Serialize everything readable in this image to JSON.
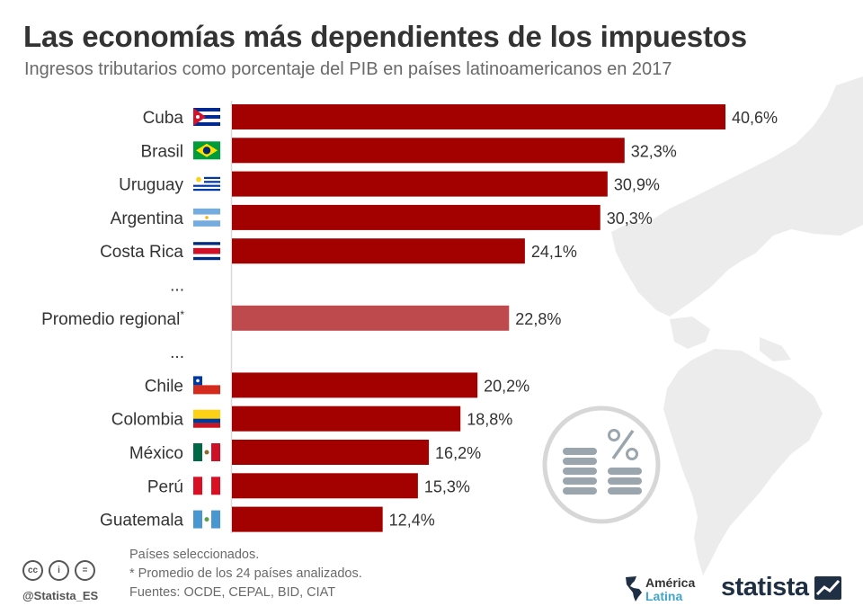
{
  "header": {
    "title": "Las economías más dependientes de los impuestos",
    "subtitle": "Ingresos tributarios como porcentaje del PIB en países latinoamericanos en 2017"
  },
  "chart_data": {
    "type": "bar",
    "orientation": "horizontal",
    "xlim": [
      0,
      40.6
    ],
    "rows": [
      {
        "label": "Cuba",
        "value": 40.6,
        "value_label": "40,6%",
        "flag": "cuba-flag",
        "highlight": false
      },
      {
        "label": "Brasil",
        "value": 32.3,
        "value_label": "32,3%",
        "flag": "brazil-flag",
        "highlight": false
      },
      {
        "label": "Uruguay",
        "value": 30.9,
        "value_label": "30,9%",
        "flag": "uruguay-flag",
        "highlight": false
      },
      {
        "label": "Argentina",
        "value": 30.3,
        "value_label": "30,3%",
        "flag": "argentina-flag",
        "highlight": false
      },
      {
        "label": "Costa Rica",
        "value": 24.1,
        "value_label": "24,1%",
        "flag": "costa-rica-flag",
        "highlight": false
      },
      {
        "label": "...",
        "gap": true
      },
      {
        "label": "Promedio regional",
        "label_mark": "*",
        "value": 22.8,
        "value_label": "22,8%",
        "highlight": true
      },
      {
        "label": "...",
        "gap": true
      },
      {
        "label": "Chile",
        "value": 20.2,
        "value_label": "20,2%",
        "flag": "chile-flag",
        "highlight": false
      },
      {
        "label": "Colombia",
        "value": 18.8,
        "value_label": "18,8%",
        "flag": "colombia-flag",
        "highlight": false
      },
      {
        "label": "México",
        "value": 16.2,
        "value_label": "16,2%",
        "flag": "mexico-flag",
        "highlight": false
      },
      {
        "label": "Perú",
        "value": 15.3,
        "value_label": "15,3%",
        "flag": "peru-flag",
        "highlight": false
      },
      {
        "label": "Guatemala",
        "value": 12.4,
        "value_label": "12,4%",
        "flag": "guatemala-flag",
        "highlight": false
      }
    ],
    "colors": {
      "bar": "#a30000",
      "highlight_bar": "#bf4a4e",
      "axis": "#d9d9d9"
    }
  },
  "footer": {
    "note1": "Países seleccionados.",
    "note2": "* Promedio de los 24 países analizados.",
    "sources": "Fuentes: OCDE, CEPAL, BID, CIAT",
    "handle": "@Statista_ES",
    "cc_icons": [
      "cc",
      "i",
      "="
    ],
    "brand1_line1": "América",
    "brand1_line2": "Latina",
    "brand2": "statista"
  }
}
